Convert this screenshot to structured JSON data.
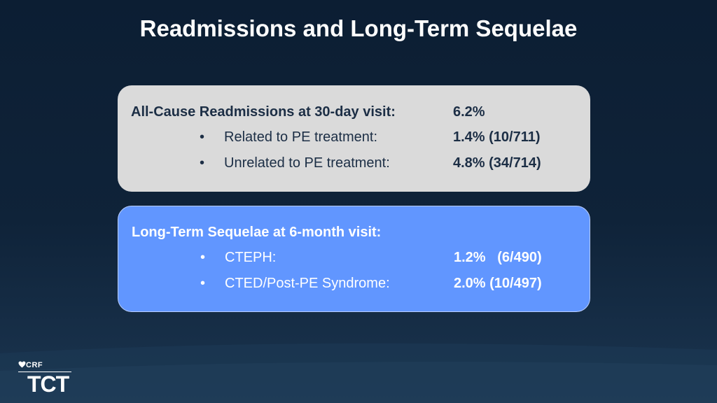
{
  "slide": {
    "title": "Readmissions and Long-Term Sequelae"
  },
  "readmissions": {
    "heading": "All-Cause Readmissions at 30-day visit:",
    "heading_value": "6.2%",
    "items": [
      {
        "bullet": "•",
        "label": "Related to PE treatment:",
        "value": "1.4% (10/711)"
      },
      {
        "bullet": "•",
        "label": "Unrelated to PE treatment:",
        "value": "4.8% (34/714)"
      }
    ]
  },
  "sequelae": {
    "heading": "Long-Term Sequelae at 6-month visit:",
    "items": [
      {
        "bullet": "•",
        "label": "CTEPH:",
        "value": "1.2%   (6/490)"
      },
      {
        "bullet": "•",
        "label": "CTED/Post-PE Syndrome:",
        "value": "2.0% (10/497)"
      }
    ]
  },
  "logo": {
    "org": "CRF",
    "event": "TCT"
  },
  "colors": {
    "background": "#0f2339",
    "gray_panel": "#dadada",
    "blue_panel": "#6196ff",
    "dark_text": "#1c2e45"
  }
}
